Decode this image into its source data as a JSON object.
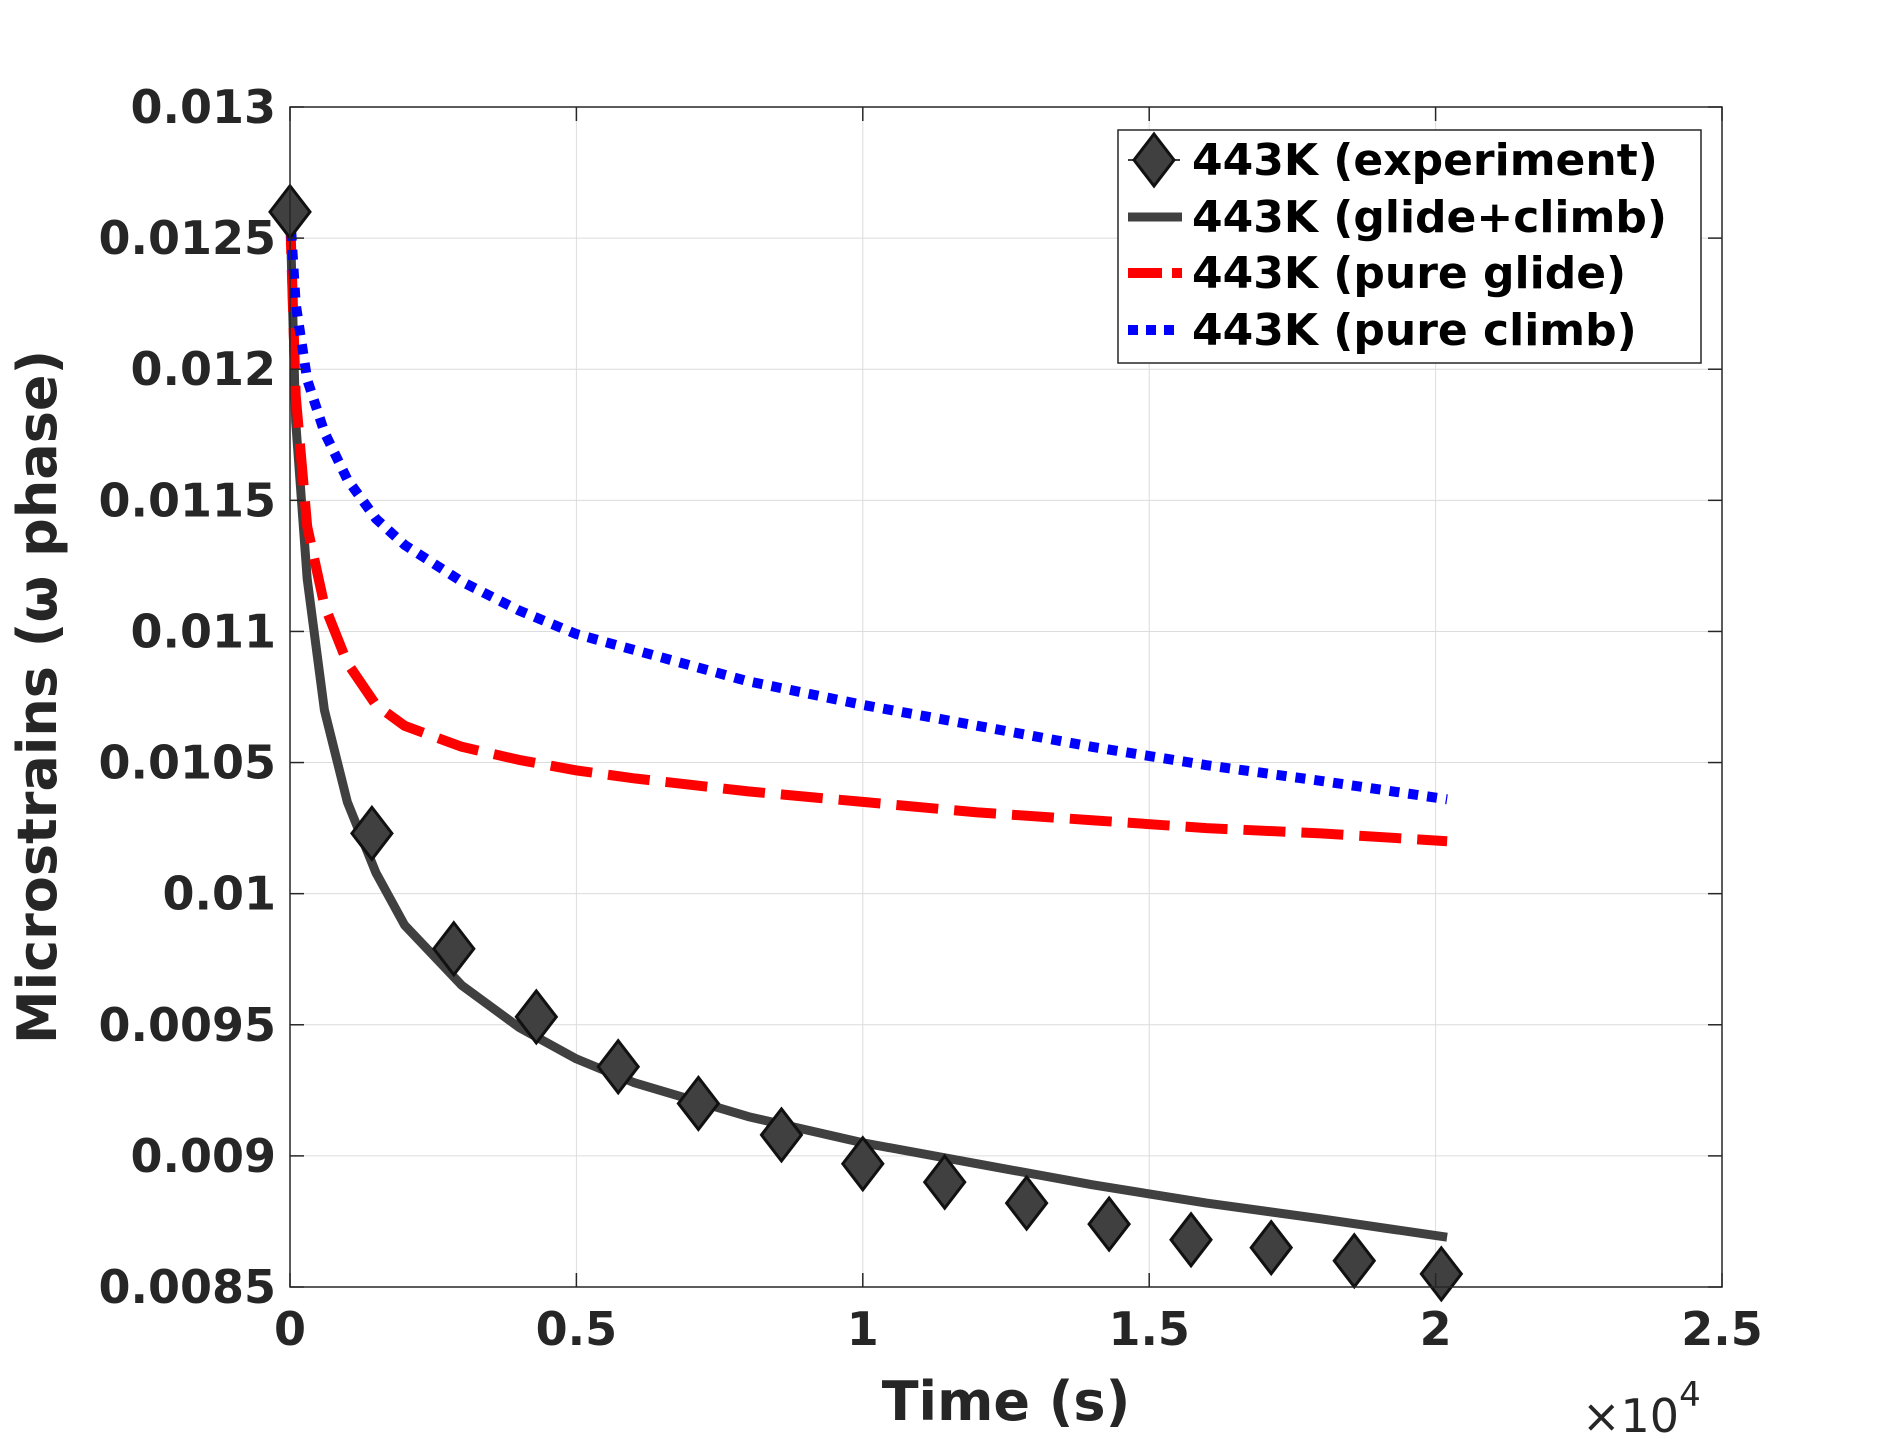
{
  "chart_data": {
    "type": "line",
    "title": "",
    "xlabel": "Time (s)",
    "ylabel": "Microstrains (ω phase)",
    "x_exponent_label": "×10",
    "x_exponent_power": "4",
    "xlim": [
      0,
      2.5
    ],
    "ylim": [
      0.0085,
      0.013
    ],
    "x_scale_note": "x values in units of 10^4 s",
    "xticks": [
      0,
      0.5,
      1,
      1.5,
      2,
      2.5
    ],
    "xtick_labels": [
      "0",
      "0.5",
      "1",
      "1.5",
      "2",
      "2.5"
    ],
    "yticks": [
      0.0085,
      0.009,
      0.0095,
      0.01,
      0.0105,
      0.011,
      0.0115,
      0.012,
      0.0125,
      0.013
    ],
    "ytick_labels": [
      "0.0085",
      "0.009",
      "0.0095",
      "0.01",
      "0.0105",
      "0.011",
      "0.0115",
      "0.012",
      "0.0125",
      "0.013"
    ],
    "grid": true,
    "legend_position": "top-right",
    "series": [
      {
        "name": "443K (experiment)",
        "style": "markers",
        "marker": "diamond",
        "color": "#404040",
        "x": [
          0,
          0.143,
          0.286,
          0.43,
          0.573,
          0.713,
          0.858,
          1.0,
          1.143,
          1.286,
          1.43,
          1.573,
          1.713,
          1.858,
          2.01
        ],
        "y": [
          0.0126,
          0.01023,
          0.00979,
          0.00953,
          0.00934,
          0.0092,
          0.00908,
          0.00897,
          0.0089,
          0.00882,
          0.00874,
          0.00868,
          0.00865,
          0.0086,
          0.00855
        ]
      },
      {
        "name": "443K (glide+climb)",
        "style": "solid",
        "color": "#404040",
        "x": [
          0,
          0.01,
          0.03,
          0.06,
          0.1,
          0.15,
          0.2,
          0.3,
          0.4,
          0.5,
          0.6,
          0.8,
          1.0,
          1.2,
          1.4,
          1.6,
          1.8,
          2.02
        ],
        "y": [
          0.0126,
          0.0118,
          0.0112,
          0.0107,
          0.01035,
          0.01008,
          0.00988,
          0.00965,
          0.00949,
          0.00937,
          0.00928,
          0.00915,
          0.00905,
          0.00897,
          0.00889,
          0.00882,
          0.00876,
          0.00869
        ]
      },
      {
        "name": "443K (pure glide)",
        "style": "dashed",
        "color": "#ff0000",
        "x": [
          0,
          0.01,
          0.03,
          0.06,
          0.1,
          0.15,
          0.2,
          0.3,
          0.4,
          0.5,
          0.6,
          0.8,
          1.0,
          1.2,
          1.4,
          1.6,
          1.8,
          2.02
        ],
        "y": [
          0.0126,
          0.0119,
          0.0114,
          0.0111,
          0.01088,
          0.01072,
          0.01064,
          0.01056,
          0.01051,
          0.01047,
          0.01044,
          0.01039,
          0.01035,
          0.01031,
          0.01028,
          0.01025,
          0.01023,
          0.0102
        ]
      },
      {
        "name": "443K (pure climb)",
        "style": "dotted",
        "color": "#0000ff",
        "x": [
          0,
          0.01,
          0.03,
          0.06,
          0.1,
          0.15,
          0.2,
          0.3,
          0.4,
          0.5,
          0.6,
          0.8,
          1.0,
          1.2,
          1.4,
          1.6,
          1.8,
          2.02
        ],
        "y": [
          0.0126,
          0.01225,
          0.01196,
          0.01176,
          0.01158,
          0.01143,
          0.01133,
          0.01119,
          0.01108,
          0.01099,
          0.01093,
          0.01081,
          0.01072,
          0.01064,
          0.01056,
          0.01049,
          0.01043,
          0.01036
        ]
      }
    ]
  }
}
